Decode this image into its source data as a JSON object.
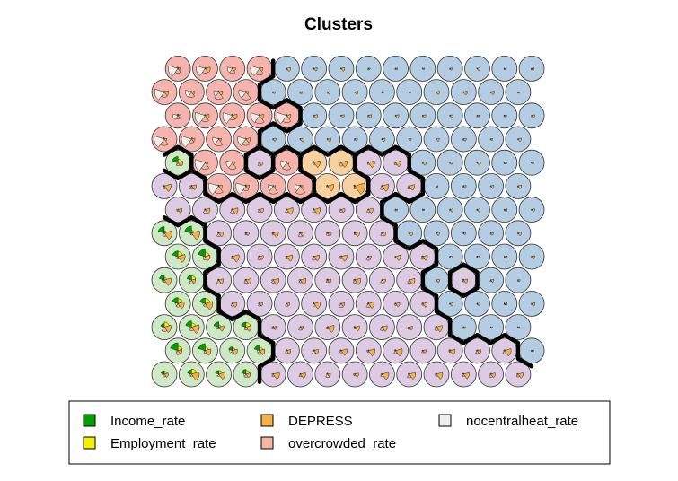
{
  "chart_data": {
    "type": "self-organizing-map",
    "title": "Clusters",
    "grid": {
      "rows": 14,
      "cols": 14,
      "topology": "hexagonal"
    },
    "variables": [
      "Income_rate",
      "Employment_rate",
      "DEPRESS",
      "overcrowded_rate",
      "nocentralheat_rate"
    ],
    "variable_colors": [
      "#00a000",
      "#f0f000",
      "#f5b24a",
      "#f5b5a5",
      "#eeeeee"
    ],
    "cluster_colors": {
      "green": "#cfe8c6",
      "purple": "#dccbe3",
      "blue": "#b5cde3",
      "orange": "#f8d1a1",
      "red": "#f5b5ae"
    },
    "cluster_map": [
      "GGGGPPPPPPPPPP",
      "GGGGPPPPPPPPPB",
      "GGGGPPPPPPPBBB",
      "GGPPPPPPPPBBBB",
      "GGPPPPPPPPBPBB",
      "GGPPPPPPPPBBBB",
      "GGPPPPPPPBBBBB",
      "PPPPPPPPBBBBBB",
      "PPRRRROOPPBBBB",
      "GRRPROOPPBBBBB",
      "RRRRBBBBBBBBBB",
      "RRRRRBBBBBBBBB",
      "RRRRBBBBBBBBBB",
      "RRRRBBBBBBBBBB"
    ],
    "legend": {
      "placement": "bottom",
      "columns": [
        [
          "Income_rate",
          "Employment_rate"
        ],
        [
          "DEPRESS",
          "overcrowded_rate"
        ],
        [
          "nocentralheat_rate"
        ]
      ]
    }
  }
}
